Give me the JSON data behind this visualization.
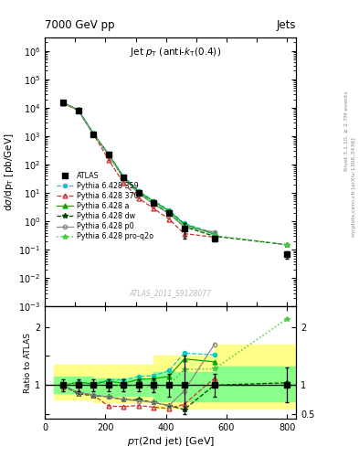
{
  "title_top": "7000 GeV pp",
  "title_top_right": "Jets",
  "plot_title": "Jet p_{T} (anti-k_{T}(0.4))",
  "xlabel": "p_{T}(2nd jet) [GeV]",
  "ylabel_main": "dσ/dp_{T} [pb/GeV]",
  "ylabel_ratio": "Ratio to ATLAS",
  "watermark": "ATLAS_2011_S9128077",
  "right_label": "Rivet 3.1.10, ≥ 2.7M events",
  "right_label2": "mcplots.cern.ch [arXiv:1306.3436]",
  "atlas_x": [
    60,
    110,
    160,
    210,
    260,
    310,
    360,
    410,
    460,
    560,
    800
  ],
  "atlas_y": [
    15000,
    8000,
    1200,
    220,
    35,
    10,
    4.5,
    2.0,
    0.55,
    0.25,
    0.07
  ],
  "atlas_yerr_lo": [
    1500,
    800,
    120,
    22,
    3.5,
    1.0,
    0.45,
    0.4,
    0.3,
    0.05,
    0.02
  ],
  "atlas_yerr_hi": [
    1500,
    800,
    120,
    22,
    3.5,
    1.0,
    0.45,
    0.4,
    0.3,
    0.05,
    0.02
  ],
  "py359_x": [
    60,
    110,
    160,
    210,
    260,
    310,
    360,
    410,
    460,
    560
  ],
  "py359_y": [
    15000,
    8500,
    1250,
    240,
    38,
    11.5,
    5.2,
    2.5,
    0.85,
    0.38
  ],
  "py370_x": [
    60,
    110,
    160,
    210,
    260,
    310,
    360,
    410,
    460,
    560
  ],
  "py370_y": [
    14500,
    8200,
    1180,
    150,
    22,
    6.5,
    2.8,
    1.2,
    0.37,
    0.28
  ],
  "pya_x": [
    60,
    110,
    160,
    210,
    260,
    310,
    360,
    410,
    460,
    560
  ],
  "pya_y": [
    15000,
    8500,
    1250,
    235,
    36,
    11.0,
    5.0,
    2.3,
    0.8,
    0.35
  ],
  "pydw_x": [
    60,
    110,
    160,
    210,
    260,
    310,
    360,
    410,
    460,
    560,
    800
  ],
  "pydw_y": [
    15000,
    8300,
    1200,
    225,
    33,
    9.8,
    4.2,
    1.95,
    0.65,
    0.3,
    0.15
  ],
  "pyp0_x": [
    60,
    110,
    160,
    210,
    260,
    310,
    360,
    410,
    460,
    560
  ],
  "pyp0_y": [
    15000,
    8200,
    1200,
    225,
    33,
    9.5,
    4.0,
    1.85,
    0.65,
    0.42
  ],
  "pyq2o_x": [
    60,
    110,
    160,
    210,
    260,
    310,
    360,
    410,
    460,
    560,
    800
  ],
  "pyq2o_y": [
    15000,
    8400,
    1220,
    230,
    34,
    10.0,
    4.3,
    2.0,
    0.7,
    0.32,
    0.15
  ],
  "ratio_py359_x": [
    60,
    110,
    160,
    210,
    260,
    310,
    360,
    410,
    460,
    560
  ],
  "ratio_py359_y": [
    1.0,
    1.05,
    1.02,
    1.09,
    1.09,
    1.15,
    1.16,
    1.25,
    1.55,
    1.52
  ],
  "ratio_py370_x": [
    60,
    110,
    160,
    210,
    260,
    310,
    360,
    410,
    460,
    560
  ],
  "ratio_py370_y": [
    0.97,
    0.88,
    0.83,
    0.64,
    0.63,
    0.65,
    0.62,
    0.6,
    0.67,
    1.12
  ],
  "ratio_pya_x": [
    60,
    110,
    160,
    210,
    260,
    310,
    360,
    410,
    460,
    560
  ],
  "ratio_pya_y": [
    1.0,
    1.05,
    1.02,
    1.07,
    1.03,
    1.1,
    1.11,
    1.15,
    1.45,
    1.4
  ],
  "ratio_pydw_x": [
    60,
    110,
    160,
    210,
    260,
    310,
    360,
    410,
    460,
    560,
    800
  ],
  "ratio_pydw_y": [
    1.0,
    0.85,
    0.82,
    0.8,
    0.75,
    0.75,
    0.7,
    0.65,
    0.58,
    1.0,
    1.04
  ],
  "ratio_pyp0_x": [
    60,
    110,
    160,
    210,
    260,
    310,
    360,
    410,
    460,
    560
  ],
  "ratio_pyp0_y": [
    1.0,
    0.87,
    0.83,
    0.8,
    0.75,
    0.73,
    0.7,
    0.65,
    0.9,
    1.7
  ],
  "ratio_pyq2o_x": [
    60,
    110,
    160,
    210,
    260,
    310,
    360,
    410,
    460,
    560,
    800
  ],
  "ratio_pyq2o_y": [
    1.0,
    1.04,
    1.0,
    1.04,
    0.97,
    1.0,
    0.95,
    1.0,
    1.27,
    1.28,
    2.14
  ],
  "ratio_atlas_x": [
    60,
    110,
    160,
    210,
    260,
    310,
    360,
    410,
    460,
    560,
    800
  ],
  "ratio_atlas_y": [
    1.0,
    1.0,
    1.0,
    1.0,
    1.0,
    1.0,
    1.0,
    1.0,
    1.0,
    1.0,
    1.0
  ],
  "ratio_atlas_err_lo": [
    0.1,
    0.1,
    0.1,
    0.1,
    0.1,
    0.1,
    0.12,
    0.2,
    0.5,
    0.2,
    0.3
  ],
  "ratio_atlas_err_hi": [
    0.1,
    0.1,
    0.1,
    0.1,
    0.1,
    0.1,
    0.12,
    0.2,
    0.5,
    0.2,
    0.3
  ],
  "band_x_edges": [
    30,
    160,
    360,
    560,
    830
  ],
  "yellow_lo": [
    0.75,
    0.7,
    0.6,
    0.6
  ],
  "yellow_hi": [
    1.35,
    1.35,
    1.5,
    1.7
  ],
  "green_lo": [
    0.87,
    0.82,
    0.72,
    0.72
  ],
  "green_hi": [
    1.15,
    1.12,
    1.22,
    1.32
  ],
  "color_atlas": "#000000",
  "color_py359": "#00CCCC",
  "color_py370": "#CC3333",
  "color_pya": "#00AA00",
  "color_pydw": "#004400",
  "color_pyp0": "#888888",
  "color_pyq2o": "#44CC44",
  "color_yellow": "#FFFF88",
  "color_green": "#88FF88",
  "xlim": [
    30,
    830
  ],
  "ylim_main": [
    0.001,
    3000000.0
  ],
  "ylim_ratio": [
    0.42,
    2.35
  ]
}
